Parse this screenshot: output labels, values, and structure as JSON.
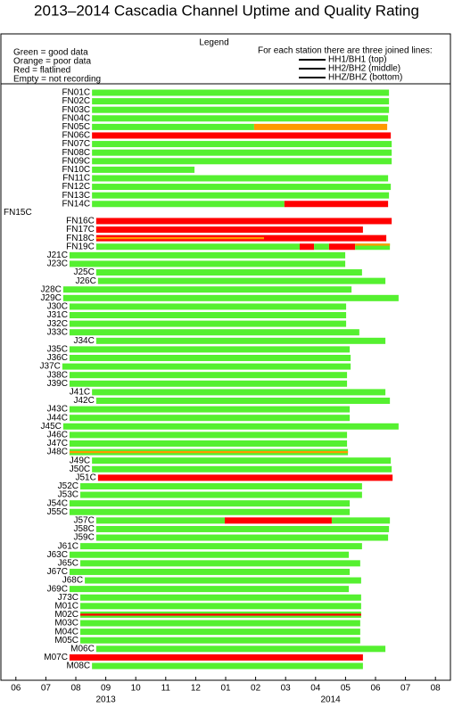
{
  "chart_data": {
    "type": "timeline",
    "title": "2013–2014 Cascadia Channel Uptime and Quality Rating",
    "legend": {
      "title": "Legend",
      "left": [
        "Green = good data",
        "Orange = poor data",
        "Red = flatlined",
        "Empty = not recording"
      ],
      "right_title": "For each station there are three joined lines:",
      "lanes": [
        "HH1/BH1 (top)",
        "HH2/BH2 (middle)",
        "HHZ/BHZ (bottom)"
      ]
    },
    "colors": {
      "good": "#55f030",
      "poor": "#ff9900",
      "flat": "#ff0000"
    },
    "xlim": [
      0,
      15
    ],
    "xticks": [
      {
        "value": 0.5,
        "label": "06"
      },
      {
        "value": 1.5,
        "label": "07"
      },
      {
        "value": 2.5,
        "label": "08"
      },
      {
        "value": 3.5,
        "label": "09"
      },
      {
        "value": 4.5,
        "label": "10"
      },
      {
        "value": 5.5,
        "label": "11"
      },
      {
        "value": 6.5,
        "label": "12"
      },
      {
        "value": 7.5,
        "label": "01"
      },
      {
        "value": 8.5,
        "label": "02"
      },
      {
        "value": 9.5,
        "label": "03"
      },
      {
        "value": 10.5,
        "label": "04"
      },
      {
        "value": 11.5,
        "label": "05"
      },
      {
        "value": 12.5,
        "label": "06"
      },
      {
        "value": 13.5,
        "label": "07"
      },
      {
        "value": 14.5,
        "label": "08"
      }
    ],
    "year_labels": [
      {
        "value": 3.5,
        "label": "2013"
      },
      {
        "value": 11,
        "label": "2014"
      }
    ],
    "rows": [
      {
        "name": "FN01C",
        "segments": [
          {
            "start": 3.04,
            "end": 12.95,
            "status": "good"
          }
        ]
      },
      {
        "name": "FN02C",
        "segments": [
          {
            "start": 3.04,
            "end": 12.95,
            "status": "good"
          }
        ]
      },
      {
        "name": "FN03C",
        "segments": [
          {
            "start": 3.04,
            "end": 12.95,
            "status": "good"
          }
        ]
      },
      {
        "name": "FN04C",
        "segments": [
          {
            "start": 3.04,
            "end": 12.92,
            "status": "good"
          }
        ]
      },
      {
        "name": "FN05C",
        "segments": [
          {
            "start": 3.04,
            "end": 8.45,
            "status": "good"
          },
          {
            "start": 8.45,
            "end": 12.89,
            "status": "poor"
          }
        ]
      },
      {
        "name": "FN06C",
        "segments": [
          {
            "start": 3.04,
            "end": 13.01,
            "status": "flat"
          }
        ]
      },
      {
        "name": "FN07C",
        "segments": [
          {
            "start": 3.04,
            "end": 13.04,
            "status": "good"
          }
        ]
      },
      {
        "name": "FN08C",
        "segments": [
          {
            "start": 3.04,
            "end": 13.04,
            "status": "good"
          }
        ]
      },
      {
        "name": "FN09C",
        "segments": [
          {
            "start": 3.04,
            "end": 13.04,
            "status": "good"
          }
        ]
      },
      {
        "name": "FN10C",
        "segments": [
          {
            "start": 3.04,
            "end": 6.46,
            "status": "good"
          }
        ]
      },
      {
        "name": "FN11C",
        "segments": [
          {
            "start": 3.04,
            "end": 12.92,
            "status": "good"
          }
        ]
      },
      {
        "name": "FN12C",
        "segments": [
          {
            "start": 3.04,
            "end": 13.01,
            "status": "good"
          }
        ]
      },
      {
        "name": "FN13C",
        "segments": [
          {
            "start": 3.04,
            "end": 12.95,
            "status": "good"
          }
        ]
      },
      {
        "name": "FN14C",
        "segments": [
          {
            "start": 3.04,
            "end": 9.46,
            "status": "good"
          },
          {
            "start": 9.46,
            "end": 12.92,
            "status": "flat"
          }
        ]
      },
      {
        "name": "FN15C",
        "segments": []
      },
      {
        "name": "FN16C",
        "segments": [
          {
            "start": 3.18,
            "end": 13.04,
            "status": "flat"
          }
        ]
      },
      {
        "name": "FN17C",
        "segments": [
          {
            "start": 3.18,
            "end": 12.08,
            "status": "flat"
          }
        ]
      },
      {
        "name": "FN18C",
        "segments": [
          {
            "start": 3.18,
            "end": 12.86,
            "status": "flat"
          },
          {
            "start": 3.18,
            "end": 8.78,
            "status": "poor",
            "lane": "middle"
          }
        ]
      },
      {
        "name": "FN19C",
        "segments": [
          {
            "start": 3.18,
            "end": 9.97,
            "status": "good"
          },
          {
            "start": 9.97,
            "end": 10.45,
            "status": "flat"
          },
          {
            "start": 10.45,
            "end": 10.95,
            "status": "good"
          },
          {
            "start": 10.95,
            "end": 11.82,
            "status": "flat"
          },
          {
            "start": 11.82,
            "end": 12.98,
            "status": "good"
          },
          {
            "start": 11.82,
            "end": 12.98,
            "status": "poor",
            "lane": "top"
          }
        ]
      },
      {
        "name": "J21C",
        "segments": [
          {
            "start": 2.29,
            "end": 11.49,
            "status": "good"
          }
        ]
      },
      {
        "name": "J23C",
        "segments": [
          {
            "start": 2.29,
            "end": 11.49,
            "status": "good"
          }
        ]
      },
      {
        "name": "J25C",
        "segments": [
          {
            "start": 3.18,
            "end": 12.05,
            "status": "good"
          }
        ]
      },
      {
        "name": "J26C",
        "segments": [
          {
            "start": 3.24,
            "end": 12.83,
            "status": "good"
          }
        ]
      },
      {
        "name": "J28C",
        "segments": [
          {
            "start": 2.08,
            "end": 11.7,
            "status": "good"
          }
        ]
      },
      {
        "name": "J29C",
        "segments": [
          {
            "start": 2.08,
            "end": 13.27,
            "status": "good"
          }
        ]
      },
      {
        "name": "J30C",
        "segments": [
          {
            "start": 2.29,
            "end": 11.52,
            "status": "good"
          }
        ]
      },
      {
        "name": "J31C",
        "segments": [
          {
            "start": 2.29,
            "end": 11.52,
            "status": "good"
          }
        ]
      },
      {
        "name": "J32C",
        "segments": [
          {
            "start": 2.29,
            "end": 11.52,
            "status": "good"
          }
        ]
      },
      {
        "name": "J33C",
        "segments": [
          {
            "start": 2.29,
            "end": 11.96,
            "status": "good"
          }
        ]
      },
      {
        "name": "J34C",
        "segments": [
          {
            "start": 3.18,
            "end": 12.83,
            "status": "good"
          }
        ]
      },
      {
        "name": "J35C",
        "segments": [
          {
            "start": 2.29,
            "end": 11.64,
            "status": "good"
          }
        ]
      },
      {
        "name": "J36C",
        "segments": [
          {
            "start": 2.29,
            "end": 11.67,
            "status": "good"
          }
        ]
      },
      {
        "name": "J37C",
        "segments": [
          {
            "start": 2.05,
            "end": 11.67,
            "status": "good"
          }
        ]
      },
      {
        "name": "J38C",
        "segments": [
          {
            "start": 2.29,
            "end": 11.55,
            "status": "good"
          }
        ]
      },
      {
        "name": "J39C",
        "segments": [
          {
            "start": 2.29,
            "end": 11.55,
            "status": "good"
          }
        ]
      },
      {
        "name": "J41C",
        "segments": [
          {
            "start": 3.04,
            "end": 12.83,
            "status": "good"
          }
        ]
      },
      {
        "name": "J42C",
        "segments": [
          {
            "start": 3.18,
            "end": 12.98,
            "status": "good"
          }
        ]
      },
      {
        "name": "J43C",
        "segments": [
          {
            "start": 2.29,
            "end": 11.64,
            "status": "good"
          }
        ]
      },
      {
        "name": "J44C",
        "segments": [
          {
            "start": 2.29,
            "end": 11.64,
            "status": "good"
          }
        ]
      },
      {
        "name": "J45C",
        "segments": [
          {
            "start": 2.08,
            "end": 13.27,
            "status": "good"
          }
        ]
      },
      {
        "name": "J46C",
        "segments": [
          {
            "start": 2.29,
            "end": 11.55,
            "status": "good"
          }
        ]
      },
      {
        "name": "J47C",
        "segments": [
          {
            "start": 2.29,
            "end": 11.55,
            "status": "good"
          }
        ]
      },
      {
        "name": "J48C",
        "segments": [
          {
            "start": 2.29,
            "end": 11.58,
            "status": "good"
          },
          {
            "start": 2.29,
            "end": 11.58,
            "status": "poor",
            "lane": "middle"
          }
        ]
      },
      {
        "name": "J49C",
        "segments": [
          {
            "start": 3.04,
            "end": 13.01,
            "status": "good"
          }
        ]
      },
      {
        "name": "J50C",
        "segments": [
          {
            "start": 3.04,
            "end": 13.04,
            "status": "good"
          }
        ]
      },
      {
        "name": "J51C",
        "segments": [
          {
            "start": 3.24,
            "end": 13.07,
            "status": "flat"
          }
        ]
      },
      {
        "name": "J52C",
        "segments": [
          {
            "start": 2.65,
            "end": 12.05,
            "status": "good"
          }
        ]
      },
      {
        "name": "J53C",
        "segments": [
          {
            "start": 2.65,
            "end": 12.05,
            "status": "good"
          }
        ]
      },
      {
        "name": "J54C",
        "segments": [
          {
            "start": 2.29,
            "end": 11.64,
            "status": "good"
          }
        ]
      },
      {
        "name": "J55C",
        "segments": [
          {
            "start": 2.29,
            "end": 11.64,
            "status": "good"
          }
        ]
      },
      {
        "name": "J57C",
        "segments": [
          {
            "start": 3.18,
            "end": 7.47,
            "status": "good"
          },
          {
            "start": 7.47,
            "end": 11.04,
            "status": "flat"
          },
          {
            "start": 11.04,
            "end": 12.98,
            "status": "good"
          }
        ]
      },
      {
        "name": "J58C",
        "segments": [
          {
            "start": 3.18,
            "end": 12.95,
            "status": "good"
          }
        ]
      },
      {
        "name": "J59C",
        "segments": [
          {
            "start": 3.18,
            "end": 12.92,
            "status": "good"
          }
        ]
      },
      {
        "name": "J61C",
        "segments": [
          {
            "start": 2.65,
            "end": 12.05,
            "status": "good"
          }
        ]
      },
      {
        "name": "J63C",
        "segments": [
          {
            "start": 2.29,
            "end": 11.61,
            "status": "good"
          }
        ]
      },
      {
        "name": "J65C",
        "segments": [
          {
            "start": 2.65,
            "end": 11.99,
            "status": "good"
          }
        ]
      },
      {
        "name": "J67C",
        "segments": [
          {
            "start": 2.29,
            "end": 11.64,
            "status": "good"
          }
        ]
      },
      {
        "name": "J68C",
        "segments": [
          {
            "start": 2.8,
            "end": 12.02,
            "status": "good"
          }
        ]
      },
      {
        "name": "J69C",
        "segments": [
          {
            "start": 2.29,
            "end": 11.61,
            "status": "good"
          }
        ]
      },
      {
        "name": "J73C",
        "segments": [
          {
            "start": 2.65,
            "end": 12.02,
            "status": "good"
          }
        ]
      },
      {
        "name": "M01C",
        "segments": [
          {
            "start": 2.65,
            "end": 12.02,
            "status": "good"
          }
        ]
      },
      {
        "name": "M02C",
        "segments": [
          {
            "start": 2.65,
            "end": 12.02,
            "status": "good"
          },
          {
            "start": 2.65,
            "end": 12.02,
            "status": "flat",
            "lane": "middle"
          }
        ]
      },
      {
        "name": "M03C",
        "segments": [
          {
            "start": 2.65,
            "end": 11.99,
            "status": "good"
          }
        ]
      },
      {
        "name": "M04C",
        "segments": [
          {
            "start": 2.65,
            "end": 11.99,
            "status": "good"
          }
        ]
      },
      {
        "name": "M05C",
        "segments": [
          {
            "start": 2.65,
            "end": 11.99,
            "status": "good"
          }
        ]
      },
      {
        "name": "M06C",
        "segments": [
          {
            "start": 3.18,
            "end": 12.83,
            "status": "good"
          }
        ]
      },
      {
        "name": "M07C",
        "segments": [
          {
            "start": 2.29,
            "end": 12.08,
            "status": "flat"
          }
        ]
      },
      {
        "name": "M08C",
        "segments": [
          {
            "start": 3.04,
            "end": 12.08,
            "status": "good"
          }
        ]
      }
    ]
  }
}
